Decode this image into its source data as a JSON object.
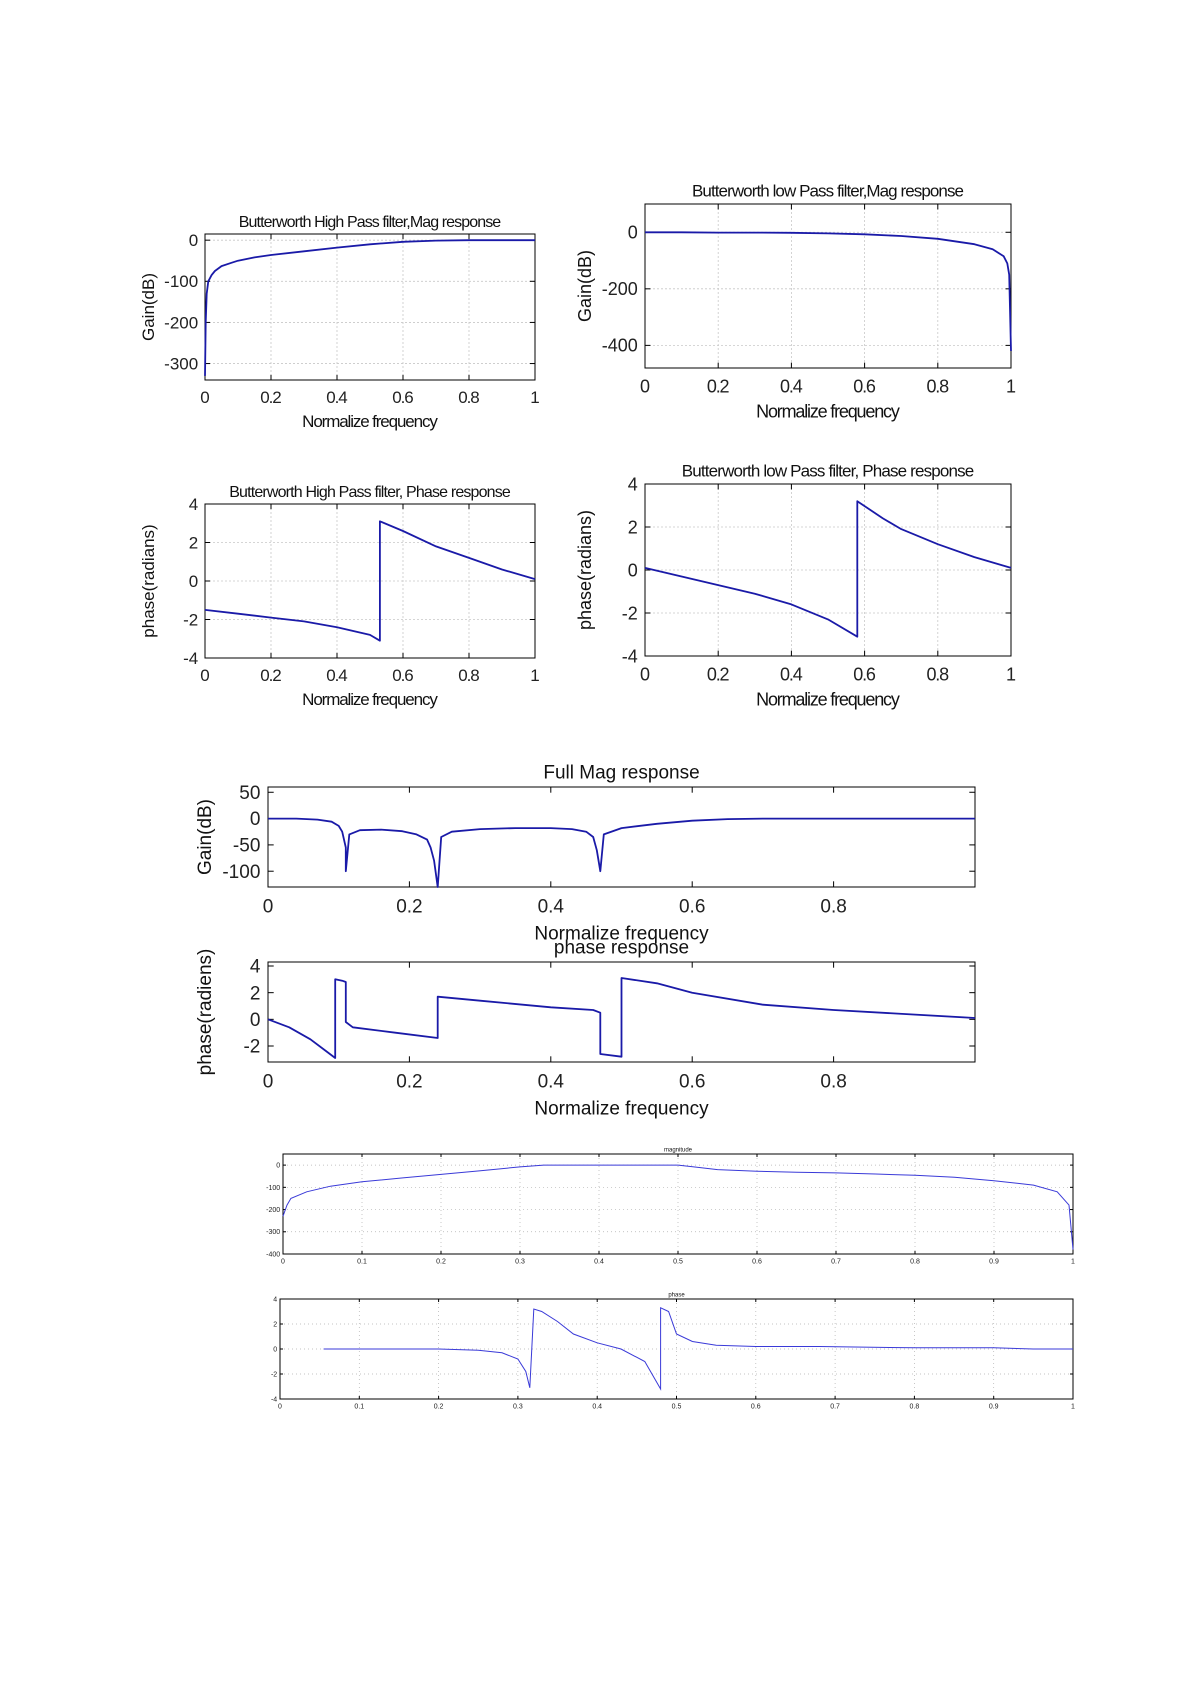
{
  "chart_data": [
    {
      "id": "hp-mag",
      "type": "line",
      "title": "Butterworth High Pass filter,Mag response",
      "xlabel": "Normalize frequency",
      "ylabel": "Gain(dB)",
      "xlim": [
        0,
        1
      ],
      "ylim": [
        -340,
        15
      ],
      "xticks": [
        0,
        0.2,
        0.4,
        0.6,
        0.8,
        1
      ],
      "xticklabels": [
        "0",
        "0.2",
        "0.4",
        "0.6",
        "0.8",
        "1"
      ],
      "yticks": [
        0,
        -100,
        -200,
        -300
      ],
      "yticklabels": [
        "0",
        "-100",
        "-200",
        "-300"
      ],
      "grid": true,
      "series": [
        {
          "x": [
            0,
            0.002,
            0.005,
            0.01,
            0.02,
            0.03,
            0.05,
            0.08,
            0.1,
            0.15,
            0.2,
            0.3,
            0.4,
            0.5,
            0.6,
            0.7,
            0.8,
            0.9,
            1.0
          ],
          "y": [
            -330,
            -200,
            -130,
            -100,
            -85,
            -75,
            -63,
            -55,
            -50,
            -42,
            -36,
            -27,
            -18,
            -10,
            -4,
            -1,
            0,
            0,
            0
          ]
        }
      ]
    },
    {
      "id": "lp-mag",
      "type": "line",
      "title": "Butterworth low Pass filter,Mag response",
      "xlabel": "Normalize frequency",
      "ylabel": "Gain(dB)",
      "xlim": [
        0,
        1
      ],
      "ylim": [
        -480,
        100
      ],
      "xticks": [
        0,
        0.2,
        0.4,
        0.6,
        0.8,
        1
      ],
      "xticklabels": [
        "0",
        "0.2",
        "0.4",
        "0.6",
        "0.8",
        "1"
      ],
      "yticks": [
        0,
        -200,
        -400
      ],
      "yticklabels": [
        "0",
        "-200",
        "-400"
      ],
      "grid": true,
      "series": [
        {
          "x": [
            0,
            0.1,
            0.2,
            0.3,
            0.4,
            0.5,
            0.6,
            0.7,
            0.8,
            0.9,
            0.95,
            0.98,
            0.99,
            0.995,
            1.0
          ],
          "y": [
            0,
            0,
            -1,
            -1,
            -2,
            -4,
            -7,
            -13,
            -23,
            -42,
            -60,
            -85,
            -110,
            -150,
            -420
          ]
        }
      ]
    },
    {
      "id": "hp-phase",
      "type": "line",
      "title": "Butterworth High Pass filter, Phase response",
      "xlabel": "Normalize frequency",
      "ylabel": "phase(radians)",
      "xlim": [
        0,
        1
      ],
      "ylim": [
        -4,
        4
      ],
      "xticks": [
        0,
        0.2,
        0.4,
        0.6,
        0.8,
        1
      ],
      "xticklabels": [
        "0",
        "0.2",
        "0.4",
        "0.6",
        "0.8",
        "1"
      ],
      "yticks": [
        4,
        2,
        0,
        -2,
        -4
      ],
      "yticklabels": [
        "4",
        "2",
        "0",
        "-2",
        "-4"
      ],
      "grid": true,
      "series": [
        {
          "x": [
            0,
            0.1,
            0.2,
            0.3,
            0.4,
            0.5,
            0.53,
            0.53,
            0.6,
            0.7,
            0.8,
            0.9,
            1.0
          ],
          "y": [
            -1.5,
            -1.7,
            -1.9,
            -2.1,
            -2.4,
            -2.8,
            -3.1,
            3.1,
            2.6,
            1.8,
            1.2,
            0.6,
            0.1
          ]
        }
      ]
    },
    {
      "id": "lp-phase",
      "type": "line",
      "title": "Butterworth low Pass filter, Phase response",
      "xlabel": "Normalize frequency",
      "ylabel": "phase(radians)",
      "xlim": [
        0,
        1
      ],
      "ylim": [
        -4,
        4
      ],
      "xticks": [
        0,
        0.2,
        0.4,
        0.6,
        0.8,
        1
      ],
      "xticklabels": [
        "0",
        "0.2",
        "0.4",
        "0.6",
        "0.8",
        "1"
      ],
      "yticks": [
        4,
        2,
        0,
        -2,
        -4
      ],
      "yticklabels": [
        "4",
        "2",
        "0",
        "-2",
        "-4"
      ],
      "grid": true,
      "series": [
        {
          "x": [
            0,
            0.1,
            0.2,
            0.3,
            0.4,
            0.5,
            0.58,
            0.58,
            0.65,
            0.7,
            0.8,
            0.9,
            1.0
          ],
          "y": [
            0.1,
            -0.3,
            -0.7,
            -1.1,
            -1.6,
            -2.3,
            -3.1,
            3.2,
            2.4,
            1.9,
            1.2,
            0.6,
            0.1
          ]
        }
      ]
    },
    {
      "id": "full-mag",
      "type": "line",
      "title": "Full Mag response",
      "xlabel": "Normalize frequency",
      "ylabel": "Gain(dB)",
      "xlim": [
        0,
        1
      ],
      "ylim": [
        -130,
        60
      ],
      "xticks": [
        0,
        0.2,
        0.4,
        0.6,
        0.8
      ],
      "xticklabels": [
        "0",
        "0.2",
        "0.4",
        "0.6",
        "0.8"
      ],
      "yticks": [
        50,
        0,
        -50,
        -100
      ],
      "yticklabels": [
        "50",
        "0",
        "-50",
        "-100"
      ],
      "grid": false,
      "series": [
        {
          "x": [
            0,
            0.04,
            0.07,
            0.09,
            0.1,
            0.105,
            0.11,
            0.11,
            0.115,
            0.13,
            0.16,
            0.19,
            0.21,
            0.225,
            0.23,
            0.235,
            0.24,
            0.24,
            0.245,
            0.26,
            0.3,
            0.35,
            0.4,
            0.43,
            0.45,
            0.46,
            0.465,
            0.47,
            0.47,
            0.475,
            0.5,
            0.55,
            0.6,
            0.65,
            0.7,
            0.8,
            0.9,
            1.0
          ],
          "y": [
            0,
            0,
            -2,
            -6,
            -14,
            -25,
            -55,
            -100,
            -30,
            -22,
            -21,
            -24,
            -30,
            -40,
            -55,
            -80,
            -130,
            -130,
            -35,
            -25,
            -20,
            -18,
            -18,
            -20,
            -25,
            -35,
            -60,
            -100,
            -100,
            -30,
            -18,
            -10,
            -4,
            -1,
            0,
            0,
            0,
            0
          ]
        }
      ]
    },
    {
      "id": "full-phase",
      "type": "line",
      "title": "phase response",
      "xlabel": "Normalize frequency",
      "ylabel": "phase(radiens)",
      "xlim": [
        0,
        1
      ],
      "ylim": [
        -3.2,
        4.3
      ],
      "xticks": [
        0,
        0.2,
        0.4,
        0.6,
        0.8
      ],
      "xticklabels": [
        "0",
        "0.2",
        "0.4",
        "0.6",
        "0.8"
      ],
      "yticks": [
        4,
        2,
        0,
        -2
      ],
      "yticklabels": [
        "4",
        "2",
        "0",
        "-2"
      ],
      "grid": false,
      "series": [
        {
          "x": [
            0,
            0.03,
            0.06,
            0.08,
            0.095,
            0.095,
            0.105,
            0.11,
            0.11,
            0.12,
            0.18,
            0.24,
            0.24,
            0.3,
            0.4,
            0.46,
            0.47,
            0.47,
            0.5,
            0.5,
            0.55,
            0.6,
            0.7,
            0.8,
            0.9,
            1.0
          ],
          "y": [
            0,
            -0.6,
            -1.5,
            -2.3,
            -2.9,
            3.0,
            2.9,
            2.8,
            -0.2,
            -0.6,
            -1.0,
            -1.4,
            1.7,
            1.4,
            0.9,
            0.7,
            0.5,
            -2.6,
            -2.8,
            3.1,
            2.7,
            2.0,
            1.1,
            0.7,
            0.4,
            0.1
          ]
        }
      ]
    },
    {
      "id": "small-mag",
      "type": "line",
      "title": "magnitude",
      "xlabel": "",
      "ylabel": "",
      "xlim": [
        0,
        1
      ],
      "ylim": [
        -400,
        50
      ],
      "xticks": [
        0,
        0.1,
        0.2,
        0.3,
        0.4,
        0.5,
        0.6,
        0.7,
        0.8,
        0.9,
        1
      ],
      "xticklabels": [
        "0",
        "0.1",
        "0.2",
        "0.3",
        "0.4",
        "0.5",
        "0.6",
        "0.7",
        "0.8",
        "0.9",
        "1"
      ],
      "yticks": [
        0,
        -100,
        -200,
        -300,
        -400
      ],
      "yticklabels": [
        "0",
        "-100",
        "-200",
        "-300",
        "-400"
      ],
      "grid": true,
      "series": [
        {
          "x": [
            0,
            0.005,
            0.01,
            0.03,
            0.06,
            0.1,
            0.15,
            0.2,
            0.25,
            0.3,
            0.33,
            0.38,
            0.42,
            0.47,
            0.5,
            0.52,
            0.55,
            0.6,
            0.65,
            0.7,
            0.75,
            0.8,
            0.85,
            0.9,
            0.95,
            0.98,
            0.995,
            1.0
          ],
          "y": [
            -230,
            -180,
            -150,
            -120,
            -95,
            -75,
            -58,
            -42,
            -25,
            -8,
            0,
            0,
            0,
            0,
            0,
            -8,
            -20,
            -28,
            -32,
            -35,
            -40,
            -46,
            -55,
            -70,
            -90,
            -120,
            -180,
            -380
          ]
        }
      ]
    },
    {
      "id": "small-phase",
      "type": "line",
      "title": "phase",
      "xlabel": "",
      "ylabel": "",
      "xlim": [
        0,
        1
      ],
      "ylim": [
        -4,
        4
      ],
      "xticks": [
        0,
        0.1,
        0.2,
        0.3,
        0.4,
        0.5,
        0.6,
        0.7,
        0.8,
        0.9,
        1
      ],
      "xticklabels": [
        "0",
        "0.1",
        "0.2",
        "0.3",
        "0.4",
        "0.5",
        "0.6",
        "0.7",
        "0.8",
        "0.9",
        "1"
      ],
      "yticks": [
        4,
        2,
        0,
        -2,
        -4
      ],
      "yticklabels": [
        "4",
        "2",
        "0",
        "-2",
        "-4"
      ],
      "grid": true,
      "series": [
        {
          "x": [
            0.055,
            0.15,
            0.2,
            0.25,
            0.28,
            0.3,
            0.31,
            0.315,
            0.32,
            0.33,
            0.35,
            0.37,
            0.4,
            0.43,
            0.46,
            0.48,
            0.48,
            0.49,
            0.5,
            0.52,
            0.55,
            0.6,
            0.65,
            0.68,
            0.8,
            0.9,
            0.95,
            1.0
          ],
          "y": [
            0,
            0,
            0,
            -0.1,
            -0.3,
            -0.8,
            -1.8,
            -3.1,
            3.2,
            3.0,
            2.2,
            1.2,
            0.5,
            0,
            -1.0,
            -3.2,
            3.3,
            3.0,
            1.2,
            0.6,
            0.3,
            0.2,
            0.2,
            0.2,
            0.1,
            0.1,
            0,
            0
          ]
        }
      ]
    }
  ]
}
